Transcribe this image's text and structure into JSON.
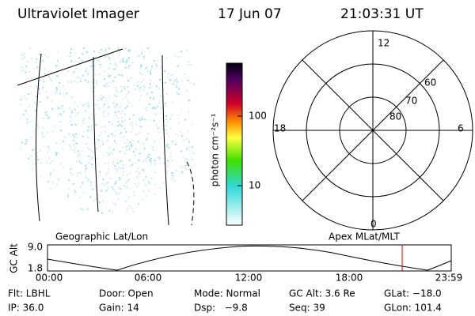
{
  "header": {
    "instrument": "Ultraviolet Imager",
    "date": "17 Jun 07",
    "time": "21:03:31 UT"
  },
  "colorbar": {
    "label": "photon cm⁻²s⁻¹",
    "ticks": [
      "100",
      "10"
    ]
  },
  "polar": {
    "mlt_labels": [
      "12",
      "18",
      "6",
      "0"
    ],
    "lat_labels": [
      "60",
      "70",
      "80"
    ]
  },
  "timeline": {
    "left_title": "Geographic Lat/Lon",
    "right_title": "Apex MLat/MLT",
    "y_label": "GC Alt",
    "y_ticks": [
      "9.0",
      "1.8"
    ],
    "x_ticks": [
      "00:00",
      "06:00",
      "12:00",
      "18:00",
      "23:59"
    ]
  },
  "info": [
    [
      "Flt: LBHL",
      "Door: Open",
      "Mode: Normal",
      "GC Alt: 3.6 Re",
      "GLat: −18.0"
    ],
    [
      "IP: 36.0",
      "Gain: 14",
      "Dsp:   −9.8",
      "Seq: 39",
      "GLon: 101.4"
    ]
  ]
}
